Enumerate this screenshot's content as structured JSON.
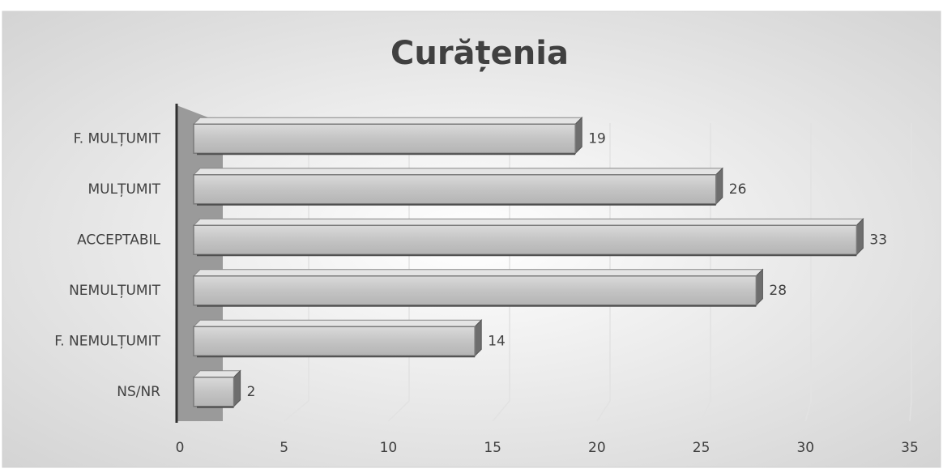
{
  "chart_data": {
    "type": "bar",
    "orientation": "horizontal",
    "title": "Curățenia",
    "categories": [
      "F. MULȚUMIT",
      "MULȚUMIT",
      "ACCEPTABIL",
      "NEMULȚUMIT",
      "F. NEMULȚUMIT",
      "NS/NR"
    ],
    "values": [
      19,
      26,
      33,
      28,
      14,
      2
    ],
    "color": "#c8c8c8",
    "xlim": [
      0,
      35
    ],
    "xticks": [
      0,
      5,
      10,
      15,
      20,
      25,
      30,
      35
    ],
    "grid": true
  }
}
